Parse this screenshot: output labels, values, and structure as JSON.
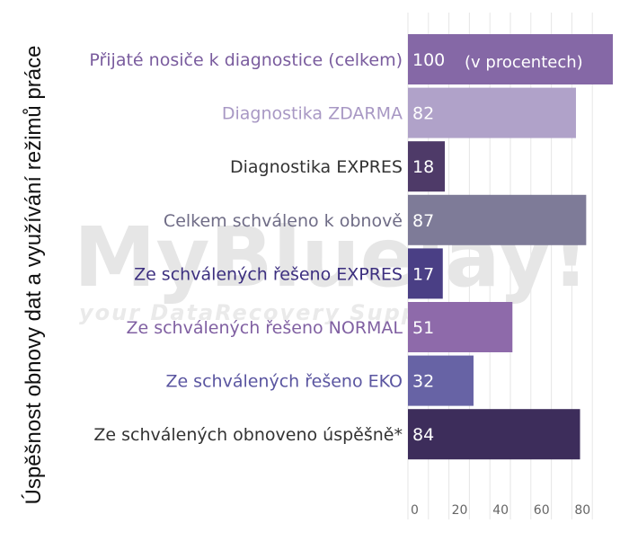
{
  "chart_data": {
    "type": "bar",
    "orientation": "horizontal",
    "ylabel": "Úspěšnost obnovy dat a využívání režimů práce",
    "xlabel": "",
    "annotation": "(v procentech)",
    "xlim": [
      0,
      100
    ],
    "xticks": [
      0,
      20,
      40,
      60,
      80
    ],
    "grid": true,
    "categories": [
      "Přijaté nosiče k diagnostice (celkem)",
      "Diagnostika ZDARMA",
      "Diagnostika EXPRES",
      "Celkem schváleno k obnově",
      "Ze schválených řešeno EXPRES",
      "Ze schválených řešeno NORMAL",
      "Ze schválených řešeno EKO",
      "Ze schválených obnoveno úspěšně*"
    ],
    "values": [
      100,
      82,
      18,
      87,
      17,
      51,
      32,
      84
    ],
    "bar_colors": [
      "#8568a6",
      "#b0a2c9",
      "#4e3a68",
      "#7e7b98",
      "#4a3f85",
      "#8e6aaa",
      "#6763a5",
      "#3d2d5b"
    ],
    "label_colors": [
      "#7a5c9e",
      "#a898c4",
      "#333333",
      "#6f6c86",
      "#3c2f7f",
      "#8060a2",
      "#5a55a0",
      "#333333"
    ]
  },
  "watermark": {
    "brand": "MyBluelay!",
    "tagline": "your DataRecovery Support"
  }
}
